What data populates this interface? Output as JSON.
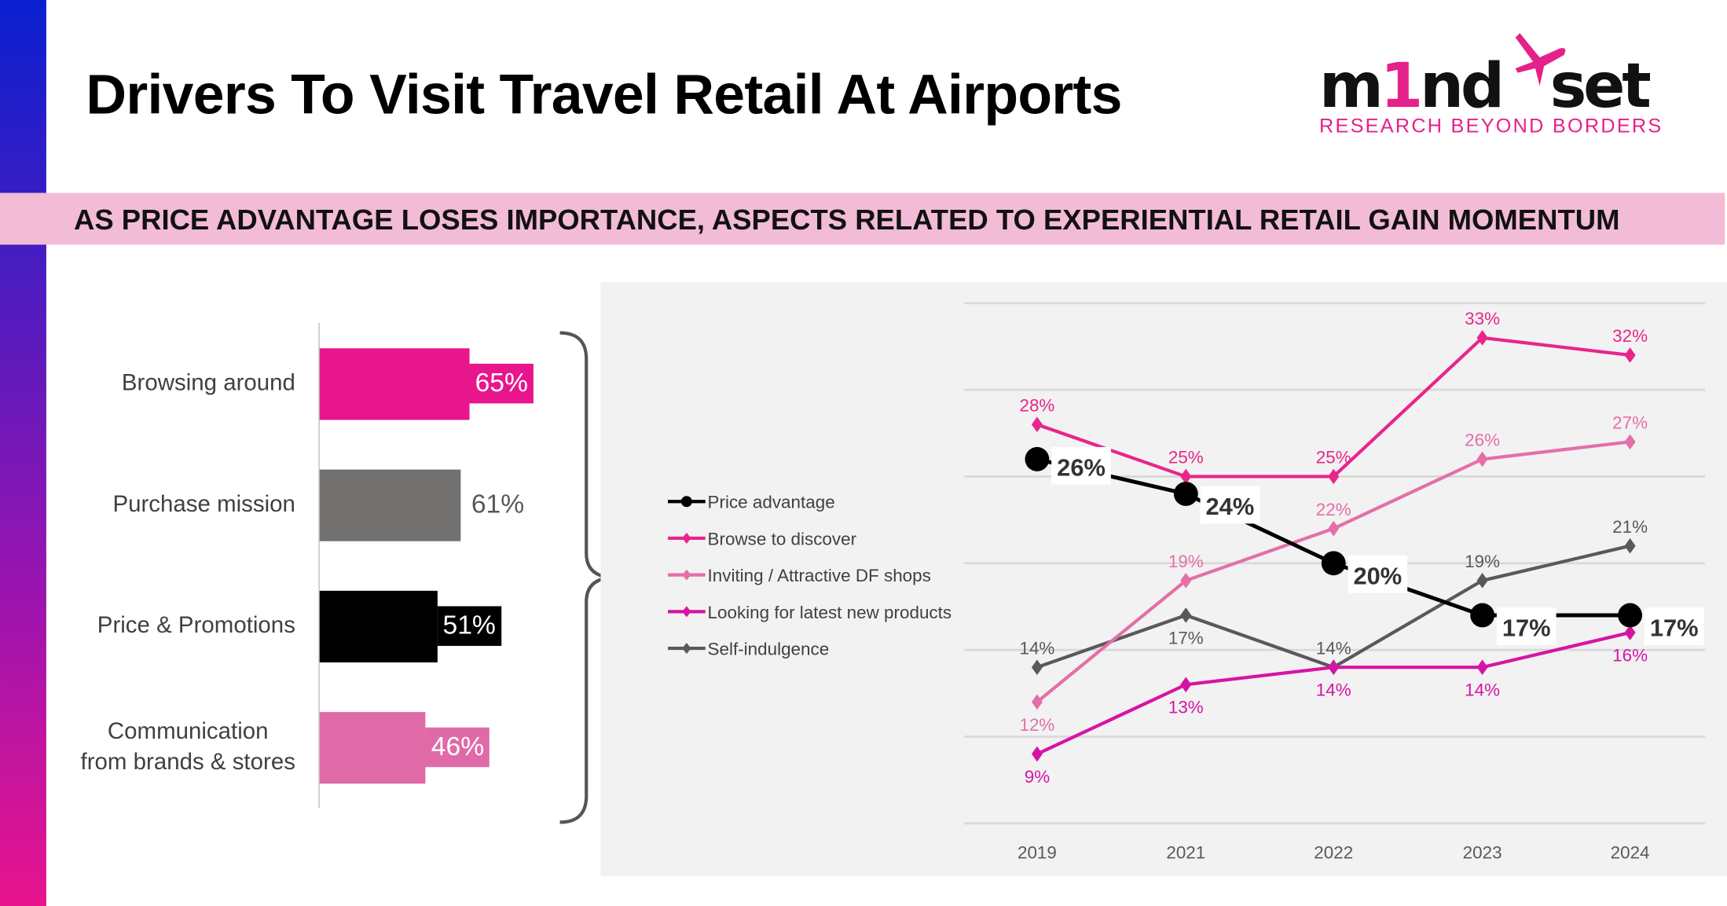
{
  "title": "Drivers To Visit Travel Retail At Airports",
  "subtitle_band": "AS PRICE ADVANTAGE LOSES IMPORTANCE, ASPECTS RELATED TO EXPERIENTIAL RETAIL GAIN MOMENTUM",
  "logo": {
    "wordmark_a": "m",
    "wordmark_one": "1",
    "wordmark_b": "nd",
    "wordmark_c": "set",
    "tagline": "RESEARCH BEYOND BORDERS"
  },
  "colors": {
    "pink": "#e8158c",
    "gray": "#737070",
    "black": "#000000",
    "light_pink": "#e06aa8",
    "band": "#f2bbd6"
  },
  "chart_data": [
    {
      "type": "bar",
      "orientation": "horizontal",
      "categories": [
        "Browsing around",
        "Purchase mission",
        "Price & Promotions",
        "Communication from brands & stores"
      ],
      "category_lines": [
        [
          "Browsing around"
        ],
        [
          "Purchase mission"
        ],
        [
          "Price & Promotions"
        ],
        [
          "Communication",
          "from brands & stores"
        ]
      ],
      "values": [
        65,
        61,
        51,
        46
      ],
      "labels": [
        "65%",
        "61%",
        "51%",
        "46%"
      ],
      "bar_colors": [
        "#e8158c",
        "#737070",
        "#000000",
        "#e06aa8"
      ],
      "xlim": [
        0,
        100
      ]
    },
    {
      "type": "line",
      "x": [
        "2019",
        "2021",
        "2022",
        "2023",
        "2024"
      ],
      "ylim": [
        5,
        35
      ],
      "grid": true,
      "legend_position": "left",
      "series": [
        {
          "name": "Price advantage",
          "values": [
            26,
            24,
            20,
            17,
            17
          ],
          "color": "#000000",
          "marker": "circle"
        },
        {
          "name": "Browse to discover",
          "values": [
            28,
            25,
            25,
            33,
            32
          ],
          "color": "#e8258a",
          "marker": "diamond"
        },
        {
          "name": "Inviting / Attractive DF shops",
          "values": [
            12,
            19,
            22,
            26,
            27
          ],
          "color": "#e46fa8",
          "marker": "diamond"
        },
        {
          "name": "Looking for latest new products",
          "values": [
            9,
            13,
            14,
            14,
            16
          ],
          "color": "#d614a4",
          "marker": "diamond"
        },
        {
          "name": "Self-indulgence",
          "values": [
            14,
            17,
            14,
            19,
            21
          ],
          "color": "#595959",
          "marker": "diamond"
        }
      ]
    }
  ]
}
